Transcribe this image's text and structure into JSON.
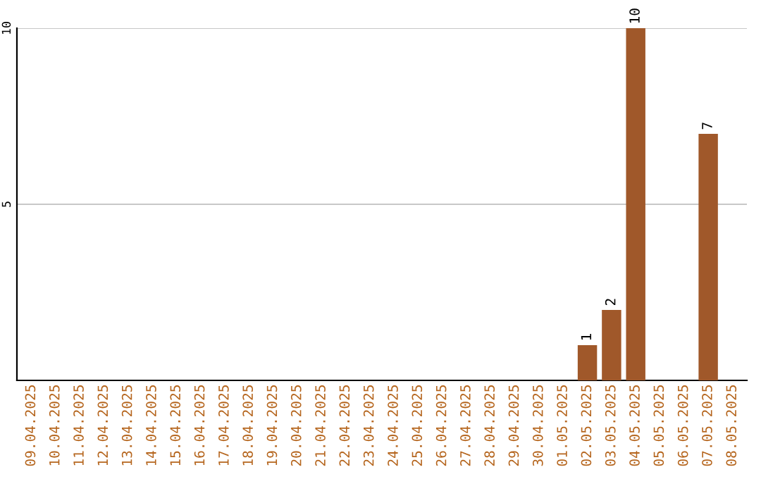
{
  "chart_data": {
    "type": "bar",
    "categories": [
      "09.04.2025",
      "10.04.2025",
      "11.04.2025",
      "12.04.2025",
      "13.04.2025",
      "14.04.2025",
      "15.04.2025",
      "16.04.2025",
      "17.04.2025",
      "18.04.2025",
      "19.04.2025",
      "20.04.2025",
      "21.04.2025",
      "22.04.2025",
      "23.04.2025",
      "24.04.2025",
      "25.04.2025",
      "26.04.2025",
      "27.04.2025",
      "28.04.2025",
      "29.04.2025",
      "30.04.2025",
      "01.05.2025",
      "02.05.2025",
      "03.05.2025",
      "04.05.2025",
      "05.05.2025",
      "06.05.2025",
      "07.05.2025",
      "08.05.2025"
    ],
    "values": [
      0,
      0,
      0,
      0,
      0,
      0,
      0,
      0,
      0,
      0,
      0,
      0,
      0,
      0,
      0,
      0,
      0,
      0,
      0,
      0,
      0,
      0,
      0,
      1,
      2,
      10,
      0,
      0,
      7,
      0
    ],
    "value_labels": [
      null,
      null,
      null,
      null,
      null,
      null,
      null,
      null,
      null,
      null,
      null,
      null,
      null,
      null,
      null,
      null,
      null,
      null,
      null,
      null,
      null,
      null,
      null,
      "1",
      "2",
      "10",
      null,
      null,
      "7",
      null
    ],
    "color": "#a0582a",
    "ylim": [
      0,
      10
    ],
    "yticks": [
      5,
      10
    ],
    "grid": "y",
    "legend": false
  }
}
